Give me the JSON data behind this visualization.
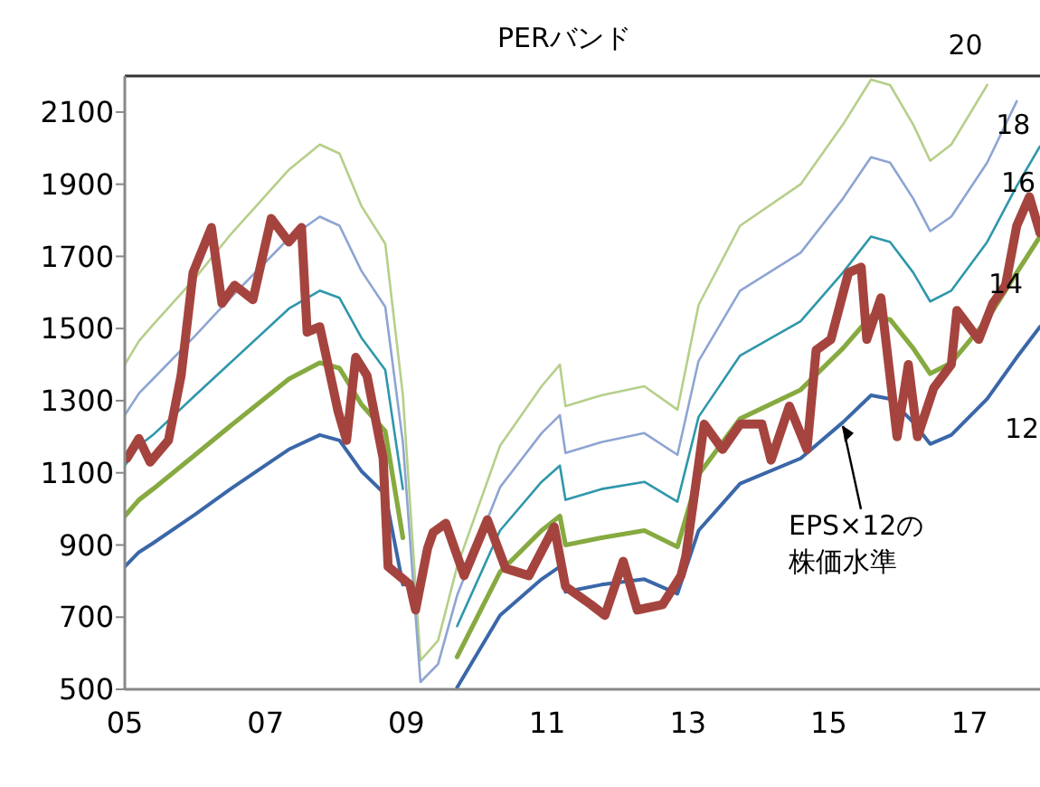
{
  "chart_data": {
    "type": "line",
    "title": "PERバンド",
    "xlim": [
      2005,
      2018
    ],
    "ylim": [
      500,
      2200
    ],
    "xticks": [
      {
        "value": 2005,
        "label": "05"
      },
      {
        "value": 2007,
        "label": "07"
      },
      {
        "value": 2009,
        "label": "09"
      },
      {
        "value": 2011,
        "label": "11"
      },
      {
        "value": 2013,
        "label": "13"
      },
      {
        "value": 2015,
        "label": "15"
      },
      {
        "value": 2017,
        "label": "17"
      }
    ],
    "yticks": [
      500,
      700,
      900,
      1100,
      1300,
      1500,
      1700,
      1900,
      2100
    ],
    "annotations": [
      {
        "text": "EPS×12の株価水準",
        "x": 2015.2,
        "y": 1240
      }
    ],
    "series": [
      {
        "name": "20",
        "color": "#b6cf8a",
        "x": [
          2005,
          2005.2,
          2005.4,
          2006,
          2006.5,
          2007.33,
          2007.77,
          2008.05,
          2008.36,
          2008.7,
          2008.95,
          2009.2,
          2009.45,
          2009.72,
          2010.33,
          2010.92,
          2011.18,
          2011.26,
          2011.77,
          2012.38,
          2012.85,
          2013.15,
          2013.74,
          2014.6,
          2015.2,
          2015.6,
          2015.87,
          2016.2,
          2016.44,
          2016.74,
          2017.25
        ],
        "values": [
          1400,
          1465,
          1510,
          1640,
          1760,
          1940,
          2010,
          1985,
          1840,
          1735,
          1315,
          580,
          635,
          840,
          1175,
          1340,
          1400,
          1285,
          1315,
          1340,
          1275,
          1565,
          1785,
          1900,
          2065,
          2190,
          2175,
          2065,
          1965,
          2010,
          2175
        ]
      },
      {
        "name": "18",
        "color": "#8ea5d2",
        "x": [
          2005,
          2005.2,
          2005.4,
          2006,
          2006.5,
          2007.33,
          2007.77,
          2008.05,
          2008.36,
          2008.7,
          2008.95,
          2009.2,
          2009.45,
          2009.72,
          2010.33,
          2010.92,
          2011.18,
          2011.26,
          2011.77,
          2012.38,
          2012.85,
          2013.15,
          2013.74,
          2014.6,
          2015.2,
          2015.6,
          2015.87,
          2016.2,
          2016.44,
          2016.74,
          2017.25,
          2017.67
        ],
        "values": [
          1260,
          1320,
          1360,
          1480,
          1585,
          1750,
          1810,
          1785,
          1660,
          1560,
          1185,
          520,
          570,
          760,
          1060,
          1210,
          1260,
          1155,
          1185,
          1210,
          1150,
          1410,
          1605,
          1710,
          1860,
          1975,
          1960,
          1860,
          1770,
          1810,
          1960,
          2130
        ]
      },
      {
        "name": "16",
        "color": "#2f97ab",
        "x": [
          2005,
          2005.2,
          2005.4,
          2006,
          2006.5,
          2007.33,
          2007.77,
          2008.05,
          2008.36,
          2008.7,
          2008.95,
          2009.2,
          2009.45,
          2009.72,
          2010.33,
          2010.92,
          2011.18,
          2011.26,
          2011.77,
          2012.38,
          2012.85,
          2013.15,
          2013.74,
          2014.6,
          2015.2,
          2015.6,
          2015.87,
          2016.2,
          2016.44,
          2016.74,
          2017.25,
          2017.67,
          2018
        ],
        "values": [
          1120,
          1175,
          1205,
          1315,
          1405,
          1555,
          1605,
          1585,
          1475,
          1385,
          1055,
          null,
          null,
          675,
          940,
          1075,
          1120,
          1025,
          1055,
          1075,
          1020,
          1255,
          1425,
          1520,
          1655,
          1755,
          1740,
          1655,
          1575,
          1605,
          1740,
          1895,
          2005
        ]
      },
      {
        "name": "14",
        "color": "#86aa40",
        "x": [
          2005,
          2005.2,
          2005.4,
          2006,
          2006.5,
          2007.33,
          2007.77,
          2008.05,
          2008.36,
          2008.7,
          2008.95,
          2009.2,
          2009.45,
          2009.72,
          2010.33,
          2010.92,
          2011.18,
          2011.26,
          2011.77,
          2012.38,
          2012.85,
          2013.15,
          2013.74,
          2014.6,
          2015.2,
          2015.6,
          2015.87,
          2016.2,
          2016.44,
          2016.74,
          2017.25,
          2017.67,
          2018
        ],
        "values": [
          980,
          1025,
          1055,
          1150,
          1230,
          1360,
          1405,
          1390,
          1290,
          1215,
          920,
          null,
          null,
          590,
          825,
          940,
          980,
          900,
          920,
          940,
          895,
          1095,
          1250,
          1330,
          1445,
          1535,
          1525,
          1445,
          1375,
          1405,
          1525,
          1655,
          1755
        ]
      },
      {
        "name": "12",
        "color": "#3a67a8",
        "x": [
          2005,
          2005.2,
          2005.4,
          2006,
          2006.5,
          2007.33,
          2007.77,
          2008.05,
          2008.36,
          2008.7,
          2008.95,
          2009.2,
          2009.45,
          2009.72,
          2010.33,
          2010.92,
          2011.18,
          2011.26,
          2011.77,
          2012.38,
          2012.85,
          2013.15,
          2013.74,
          2014.6,
          2015.2,
          2015.6,
          2015.87,
          2016.2,
          2016.44,
          2016.74,
          2017.25,
          2017.67,
          2018
        ],
        "values": [
          840,
          880,
          905,
          985,
          1055,
          1165,
          1205,
          1190,
          1105,
          1040,
          790,
          null,
          null,
          505,
          705,
          805,
          840,
          770,
          790,
          805,
          765,
          940,
          1070,
          1140,
          1240,
          1315,
          1305,
          1240,
          1180,
          1205,
          1305,
          1420,
          1505
        ]
      },
      {
        "color": "#a5443e",
        "x": [
          2005.03,
          2005.2,
          2005.36,
          2005.62,
          2005.8,
          2005.97,
          2006.23,
          2006.38,
          2006.56,
          2006.82,
          2007.08,
          2007.33,
          2007.51,
          2007.59,
          2007.77,
          2008.03,
          2008.15,
          2008.28,
          2008.44,
          2008.67,
          2008.74,
          2009.05,
          2009.13,
          2009.3,
          2009.38,
          2009.56,
          2009.82,
          2010.15,
          2010.41,
          2010.74,
          2011.1,
          2011.26,
          2011.62,
          2011.82,
          2012.08,
          2012.28,
          2012.64,
          2012.9,
          2012.97,
          2013.23,
          2013.49,
          2013.74,
          2014.05,
          2014.18,
          2014.44,
          2014.69,
          2014.82,
          2015.03,
          2015.28,
          2015.46,
          2015.54,
          2015.74,
          2015.97,
          2016.13,
          2016.26,
          2016.49,
          2016.74,
          2016.82,
          2017.13,
          2017.33,
          2017.51,
          2017.67,
          2017.85,
          2018
        ],
        "values": [
          1140,
          1195,
          1130,
          1190,
          1370,
          1655,
          1780,
          1570,
          1620,
          1580,
          1805,
          1740,
          1780,
          1490,
          1505,
          1270,
          1190,
          1420,
          1370,
          1140,
          840,
          790,
          720,
          890,
          935,
          960,
          815,
          970,
          835,
          815,
          950,
          785,
          735,
          705,
          855,
          720,
          735,
          815,
          870,
          1235,
          1165,
          1235,
          1235,
          1135,
          1285,
          1165,
          1440,
          1470,
          1655,
          1670,
          1470,
          1585,
          1200,
          1400,
          1200,
          1335,
          1400,
          1550,
          1470,
          1570,
          1620,
          1785,
          1865,
          1765
        ]
      }
    ]
  }
}
